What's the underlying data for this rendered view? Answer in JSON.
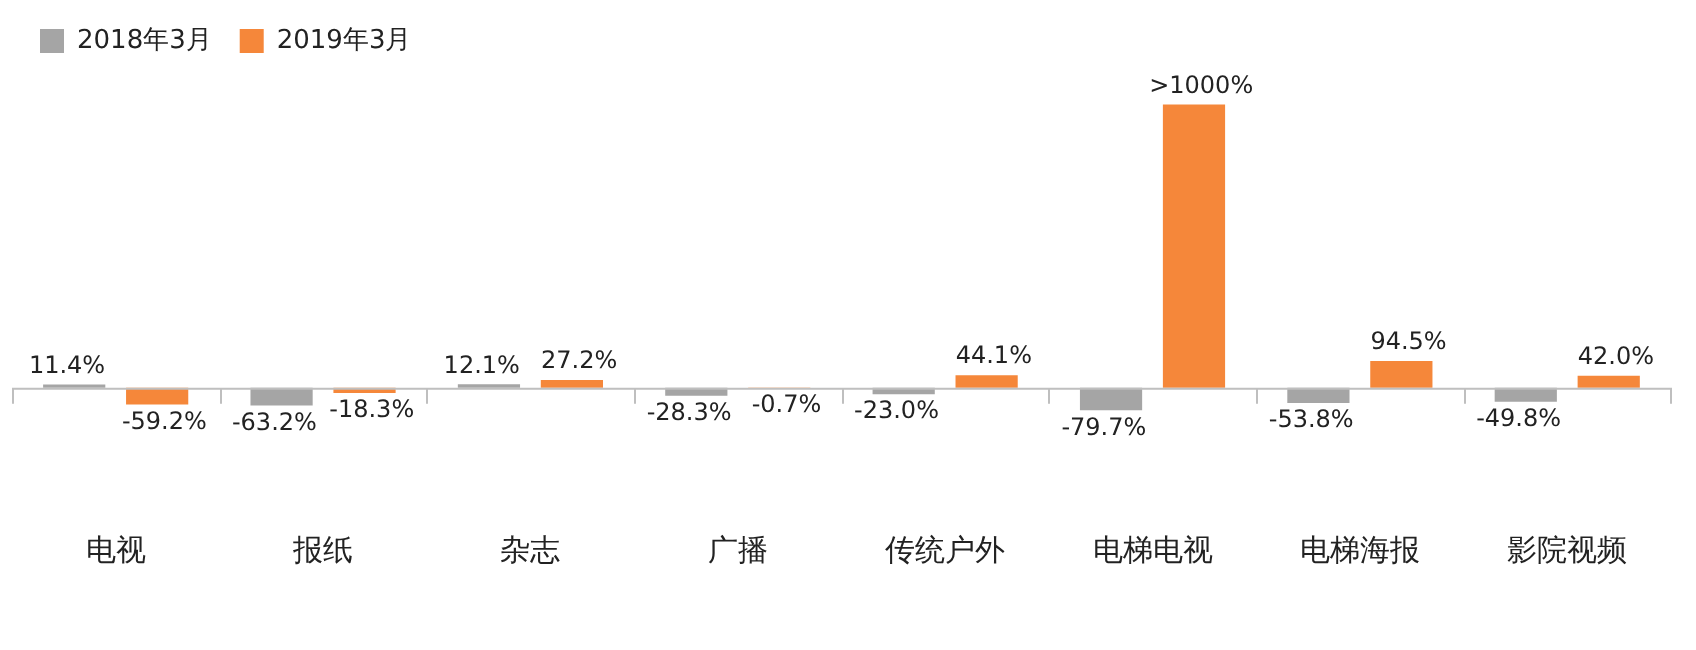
{
  "chart_data": {
    "type": "bar",
    "categories": [
      "电视",
      "报纸",
      "杂志",
      "广播",
      "传统户外",
      "电梯电视",
      "电梯海报",
      "影院视频"
    ],
    "series": [
      {
        "name": "2018年3月",
        "color": "#a5a5a5",
        "values": [
          11.4,
          -63.2,
          12.1,
          -28.3,
          -23.0,
          -79.7,
          -53.8,
          -49.8
        ],
        "value_labels": [
          "11.4%",
          "-63.2%",
          "12.1%",
          "-28.3%",
          "-23.0%",
          "-79.7%",
          "-53.8%",
          "-49.8%"
        ]
      },
      {
        "name": "2019年3月",
        "color": "#f5873a",
        "values": [
          -59.2,
          -18.3,
          27.2,
          -0.7,
          44.1,
          1000,
          94.5,
          42.0
        ],
        "value_labels": [
          "-59.2%",
          "-18.3%",
          "27.2%",
          "-0.7%",
          "44.1%",
          ">1000%",
          "94.5%",
          "42.0%"
        ]
      }
    ],
    "legend": "top left",
    "grid": false
  }
}
